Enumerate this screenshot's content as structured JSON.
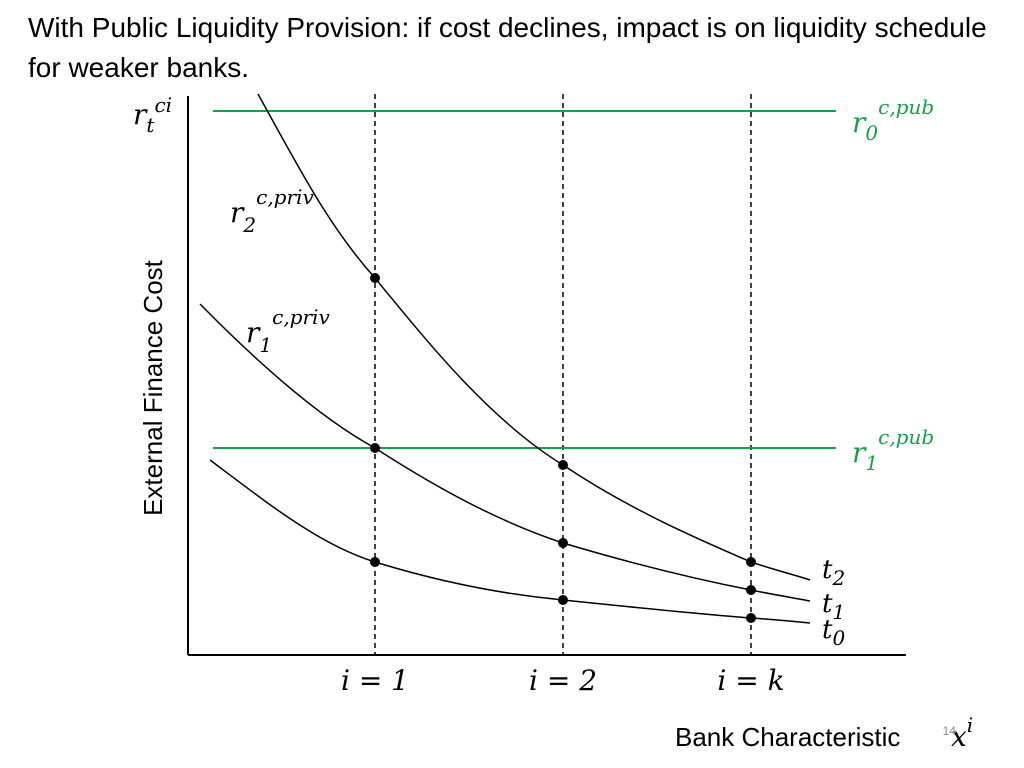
{
  "slide": {
    "title": "With Public Liquidity Provision: if cost declines, impact is on liquidity schedule for weaker banks.",
    "number": "14"
  },
  "axes": {
    "y_label": "External Finance Cost",
    "y_top_label": {
      "base": "r",
      "sub": "t",
      "sup": "ci"
    },
    "x_label": "Bank Characteristic",
    "x_var": {
      "base": "x",
      "sup": "i"
    }
  },
  "vertical_markers": [
    "i = 1",
    "i = 2",
    "i = k"
  ],
  "horizontal_lines": [
    {
      "base": "r",
      "sub": "0",
      "sup": "c,pub",
      "color": "#1a9e4a"
    },
    {
      "base": "r",
      "sub": "1",
      "sup": "c,pub",
      "color": "#1a9e4a"
    }
  ],
  "curve_labels": [
    {
      "base": "r",
      "sub": "2",
      "sup": "c,priv"
    },
    {
      "base": "r",
      "sub": "1",
      "sup": "c,priv"
    }
  ],
  "time_labels": [
    {
      "base": "t",
      "sub": "2"
    },
    {
      "base": "t",
      "sub": "1"
    },
    {
      "base": "t",
      "sub": "0"
    }
  ],
  "colors": {
    "public_rate": "#1a9e4a",
    "curve": "#000000"
  }
}
